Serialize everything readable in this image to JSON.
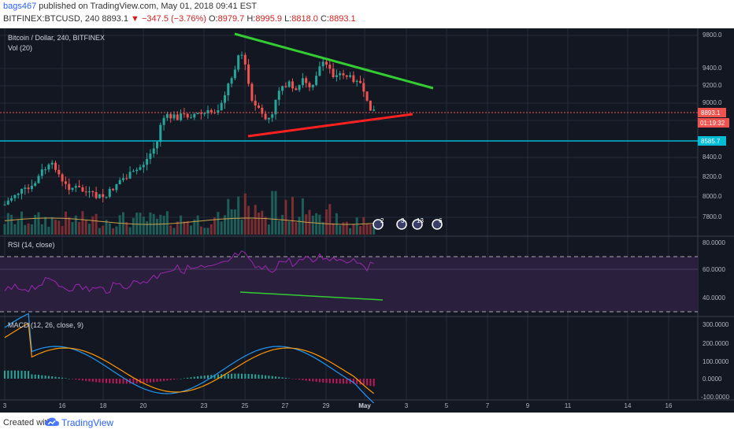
{
  "header": {
    "username": "bags467",
    "published_text": "published on TradingView.com, May 01, 2018 09:41 EST",
    "symbol_line": "BITFINEX:BTCUSD, 240",
    "last_price": "8893.1",
    "change_text": "▼ −347.5 (−3.76%)",
    "o_label": "O:",
    "o_value": "8979.7",
    "h_label": "H:",
    "h_value": "8995.9",
    "l_label": "L:",
    "l_value": "8818.0",
    "c_label": "C:",
    "c_value": "8893.1"
  },
  "legend": {
    "main_title": "Bitcoin / Dollar, 240, BITFINEX",
    "volume": "Vol (20)",
    "rsi": "RSI (14, close)",
    "macd": "MACD (12, 26, close, 9)"
  },
  "price_axis": [
    "9800.0",
    "9400.0",
    "9200.0",
    "9000.0",
    "8400.0",
    "8200.0",
    "8000.0",
    "7800.0"
  ],
  "price_tags": {
    "last": "8893.1",
    "countdown": "01:19:32",
    "support": "8585.7"
  },
  "rsi_axis": [
    "80.0000",
    "60.0000",
    "40.0000"
  ],
  "macd_axis": [
    "300.0000",
    "200.0000",
    "100.0000",
    "0.0000",
    "-100.0000"
  ],
  "time_axis": [
    "3",
    "16",
    "18",
    "20",
    "23",
    "25",
    "27",
    "29",
    "May",
    "3",
    "5",
    "7",
    "9",
    "11",
    "14",
    "16"
  ],
  "event_badges": [
    "2",
    "3",
    "13",
    "6"
  ],
  "footer": {
    "created_with": "Created with",
    "brand": "TradingView"
  },
  "colors": {
    "background": "#131722",
    "up": "#26a69a",
    "down": "#ef5350",
    "green_line": "#33cc33",
    "red_line": "#ff2020",
    "support_line": "#00bcd4",
    "rsi": "#9c27b0",
    "macd": "#2196f3",
    "signal": "#ff9800"
  }
}
